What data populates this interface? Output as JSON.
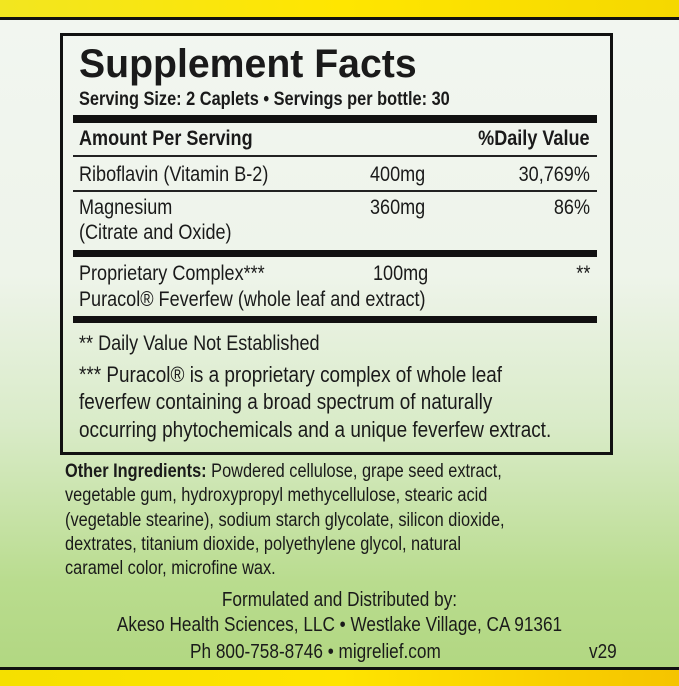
{
  "title": "Supplement Facts",
  "serving": "Serving Size: 2 Caplets • Servings per bottle: 30",
  "header": {
    "amount": "Amount Per Serving",
    "dv": "%Daily Value"
  },
  "rows": [
    {
      "name": "Riboflavin (Vitamin B-2)",
      "amount": "400mg",
      "dv": "30,769%"
    },
    {
      "name": "Magnesium",
      "name2": "(Citrate and Oxide)",
      "amount": "360mg",
      "dv": "86%"
    },
    {
      "name": "Proprietary Complex***",
      "name2": "Puracol® Feverfew (whole leaf and extract)",
      "amount": "100mg",
      "dv": "**"
    }
  ],
  "footnotes": {
    "dv_note": "** Daily Value Not Established",
    "puracol_lines": [
      "*** Puracol® is a proprietary complex of whole leaf",
      "feverfew containing a broad spectrum of naturally",
      "occurring phytochemicals and a unique feverfew extract."
    ]
  },
  "other": {
    "label": "Other Ingredients:",
    "lines": [
      " Powdered cellulose, grape seed extract,",
      "vegetable gum, hydroxypropyl methycellulose, stearic acid",
      "(vegetable stearine), sodium starch glycolate, silicon dioxide,",
      "dextrates, titanium dioxide, polyethylene glycol, natural",
      "caramel color, microfine wax."
    ]
  },
  "distributor": {
    "line1": "Formulated and Distributed by:",
    "line2": "Akeso Health Sciences, LLC • Westlake Village, CA 91361",
    "line3": "Ph 800-758-8746 • migrelief.com",
    "version": "v29"
  },
  "colors": {
    "yellow": "#ffe600",
    "green": "#b0d67f",
    "ink": "#111111"
  }
}
